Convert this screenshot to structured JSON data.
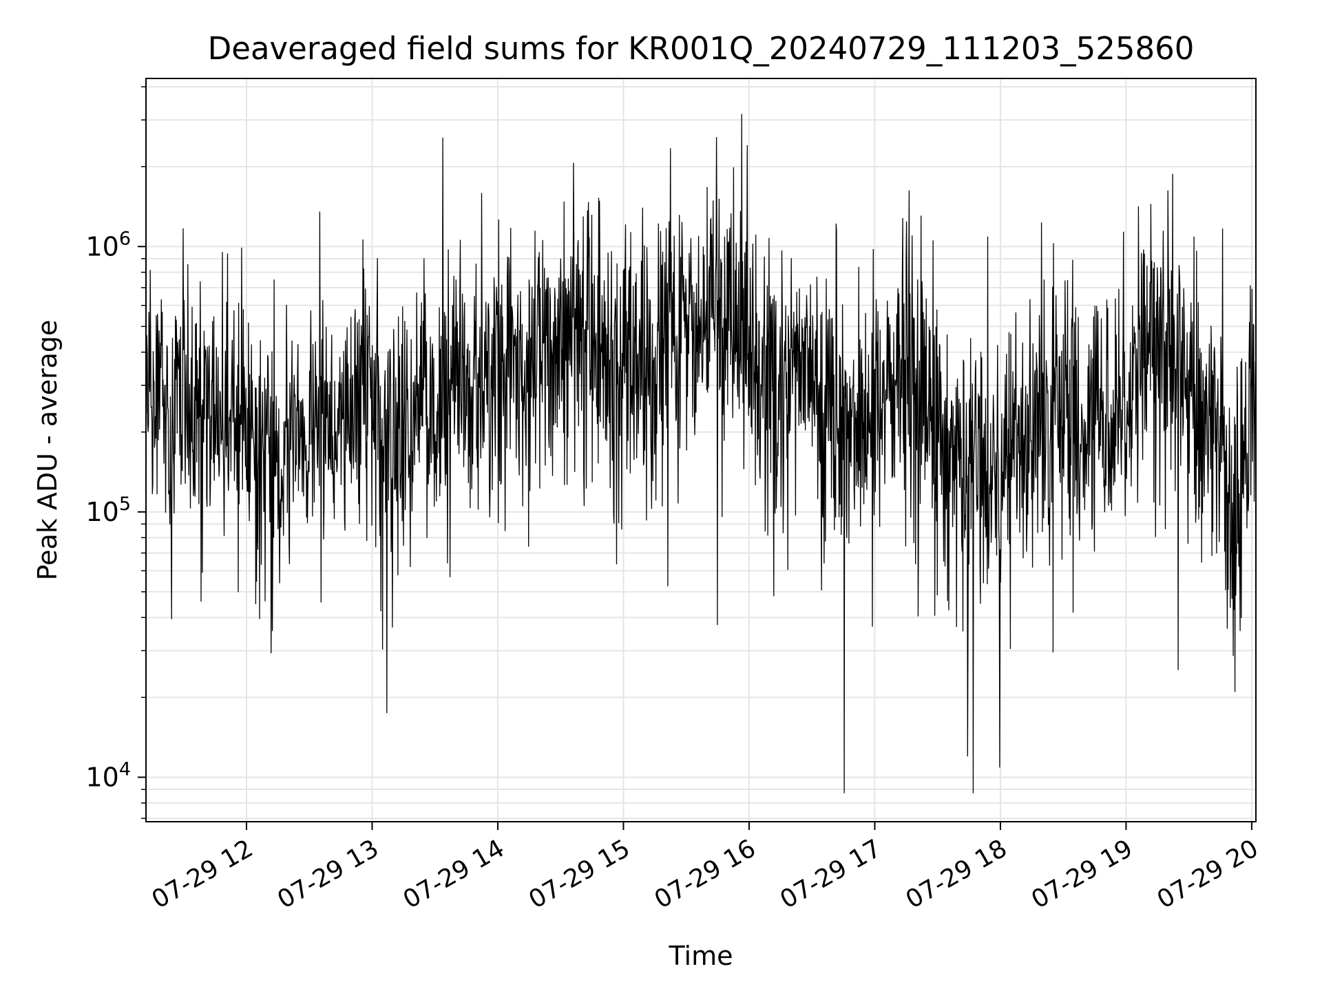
{
  "chart_data": {
    "type": "line",
    "title": "Deaveraged field sums for KR001Q_20240729_111203_525860",
    "xlabel": "Time",
    "ylabel": "Peak ADU - average",
    "yscale": "log",
    "ylim": [
      6800,
      4300000
    ],
    "xlim": [
      "2024-07-29 11:12",
      "2024-07-29 20:02"
    ],
    "x_ticks": [
      {
        "label": "07-29 12",
        "time": "2024-07-29 12:00"
      },
      {
        "label": "07-29 13",
        "time": "2024-07-29 13:00"
      },
      {
        "label": "07-29 14",
        "time": "2024-07-29 14:00"
      },
      {
        "label": "07-29 15",
        "time": "2024-07-29 15:00"
      },
      {
        "label": "07-29 16",
        "time": "2024-07-29 16:00"
      },
      {
        "label": "07-29 17",
        "time": "2024-07-29 17:00"
      },
      {
        "label": "07-29 18",
        "time": "2024-07-29 18:00"
      },
      {
        "label": "07-29 19",
        "time": "2024-07-29 19:00"
      },
      {
        "label": "07-29 20",
        "time": "2024-07-29 20:00"
      }
    ],
    "y_ticks": [
      {
        "base": "10",
        "exp": "4",
        "value": 10000
      },
      {
        "base": "10",
        "exp": "5",
        "value": 100000
      },
      {
        "base": "10",
        "exp": "6",
        "value": 1000000
      }
    ],
    "grid": true,
    "line_color": "#000000",
    "grid_color": "#e5e5e5",
    "series": [
      {
        "x": [
          "2024-07-29 11:12",
          "2024-07-29 11:18",
          "2024-07-29 11:24",
          "2024-07-29 11:30",
          "2024-07-29 11:36",
          "2024-07-29 11:42",
          "2024-07-29 11:48",
          "2024-07-29 11:54",
          "2024-07-29 12:00",
          "2024-07-29 12:06",
          "2024-07-29 12:12",
          "2024-07-29 12:18",
          "2024-07-29 12:24",
          "2024-07-29 12:30",
          "2024-07-29 12:36",
          "2024-07-29 12:42",
          "2024-07-29 12:48",
          "2024-07-29 12:54",
          "2024-07-29 13:00",
          "2024-07-29 13:06",
          "2024-07-29 13:12",
          "2024-07-29 13:18",
          "2024-07-29 13:24",
          "2024-07-29 13:30",
          "2024-07-29 13:36",
          "2024-07-29 13:42",
          "2024-07-29 13:48",
          "2024-07-29 13:54",
          "2024-07-29 14:00",
          "2024-07-29 14:06",
          "2024-07-29 14:12",
          "2024-07-29 14:18",
          "2024-07-29 14:24",
          "2024-07-29 14:30",
          "2024-07-29 14:36",
          "2024-07-29 14:42",
          "2024-07-29 14:48",
          "2024-07-29 14:54",
          "2024-07-29 15:00",
          "2024-07-29 15:06",
          "2024-07-29 15:12",
          "2024-07-29 15:18",
          "2024-07-29 15:24",
          "2024-07-29 15:30",
          "2024-07-29 15:36",
          "2024-07-29 15:42",
          "2024-07-29 15:48",
          "2024-07-29 15:54",
          "2024-07-29 16:00",
          "2024-07-29 16:06",
          "2024-07-29 16:12",
          "2024-07-29 16:18",
          "2024-07-29 16:24",
          "2024-07-29 16:30",
          "2024-07-29 16:36",
          "2024-07-29 16:42",
          "2024-07-29 16:48",
          "2024-07-29 16:54",
          "2024-07-29 17:00",
          "2024-07-29 17:06",
          "2024-07-29 17:12",
          "2024-07-29 17:18",
          "2024-07-29 17:24",
          "2024-07-29 17:30",
          "2024-07-29 17:36",
          "2024-07-29 17:42",
          "2024-07-29 17:48",
          "2024-07-29 17:54",
          "2024-07-29 18:00",
          "2024-07-29 18:06",
          "2024-07-29 18:12",
          "2024-07-29 18:18",
          "2024-07-29 18:24",
          "2024-07-29 18:30",
          "2024-07-29 18:36",
          "2024-07-29 18:42",
          "2024-07-29 18:48",
          "2024-07-29 18:54",
          "2024-07-29 19:00",
          "2024-07-29 19:06",
          "2024-07-29 19:12",
          "2024-07-29 19:18",
          "2024-07-29 19:24",
          "2024-07-29 19:30",
          "2024-07-29 19:36",
          "2024-07-29 19:42",
          "2024-07-29 19:48",
          "2024-07-29 19:54",
          "2024-07-29 20:00"
        ],
        "y": [
          250000,
          300000,
          220000,
          280000,
          200000,
          260000,
          240000,
          210000,
          230000,
          200000,
          170000,
          150000,
          190000,
          210000,
          220000,
          190000,
          230000,
          250000,
          260000,
          240000,
          210000,
          220000,
          250000,
          230000,
          260000,
          280000,
          250000,
          300000,
          320000,
          340000,
          360000,
          400000,
          420000,
          400000,
          440000,
          430000,
          410000,
          380000,
          350000,
          330000,
          360000,
          400000,
          430000,
          470000,
          480000,
          520000,
          500000,
          460000,
          420000,
          330000,
          300000,
          320000,
          380000,
          330000,
          260000,
          240000,
          210000,
          200000,
          250000,
          280000,
          330000,
          310000,
          260000,
          220000,
          170000,
          150000,
          140000,
          130000,
          140000,
          160000,
          190000,
          210000,
          240000,
          260000,
          230000,
          200000,
          230000,
          250000,
          280000,
          330000,
          420000,
          450000,
          360000,
          280000,
          240000,
          200000,
          130000,
          90000,
          250000
        ]
      }
    ]
  }
}
